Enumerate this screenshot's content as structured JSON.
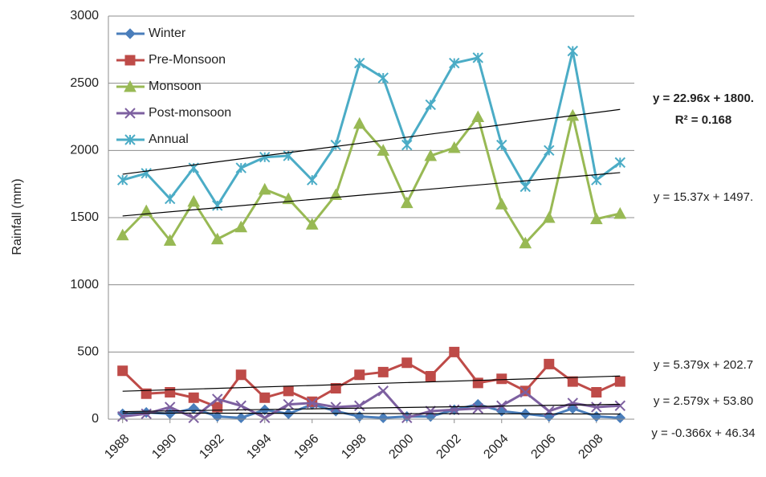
{
  "chart_data": {
    "type": "line",
    "y_label": "Rainfall (mm)",
    "x": [
      1988,
      1989,
      1990,
      1991,
      1992,
      1993,
      1994,
      1995,
      1996,
      1997,
      1998,
      1999,
      2000,
      2001,
      2002,
      2003,
      2004,
      2005,
      2006,
      2007,
      2008,
      2009
    ],
    "xlim": [
      1987.4,
      2009.6
    ],
    "xticks": [
      1988,
      1990,
      1992,
      1994,
      1996,
      1998,
      2000,
      2002,
      2004,
      2006,
      2008
    ],
    "ylim": [
      0,
      3000
    ],
    "yticks": [
      0,
      500,
      1000,
      1500,
      2000,
      2500,
      3000
    ],
    "grid": true,
    "legend": "top-left",
    "series": [
      {
        "name": "Winter",
        "color": "#4a7ebb",
        "marker": "diamond",
        "values": [
          40,
          50,
          40,
          80,
          20,
          10,
          70,
          40,
          110,
          60,
          20,
          10,
          20,
          20,
          70,
          110,
          60,
          40,
          20,
          80,
          20,
          10
        ]
      },
      {
        "name": "Pre-Monsoon",
        "color": "#be4b48",
        "marker": "square",
        "values": [
          360,
          190,
          200,
          160,
          90,
          330,
          160,
          210,
          130,
          230,
          330,
          350,
          420,
          320,
          500,
          270,
          300,
          210,
          410,
          280,
          200,
          280
        ]
      },
      {
        "name": "Monsoon",
        "color": "#98b954",
        "marker": "triangle",
        "values": [
          1370,
          1550,
          1330,
          1620,
          1340,
          1430,
          1710,
          1640,
          1450,
          1670,
          2200,
          2000,
          1610,
          1960,
          2020,
          2250,
          1600,
          1310,
          1500,
          2260,
          1490,
          1530
        ]
      },
      {
        "name": "Post-monsoon",
        "color": "#7d60a0",
        "marker": "x",
        "values": [
          20,
          40,
          90,
          10,
          150,
          100,
          10,
          110,
          120,
          90,
          100,
          210,
          10,
          60,
          70,
          80,
          100,
          200,
          60,
          120,
          90,
          100
        ]
      },
      {
        "name": "Annual",
        "color": "#4bacc6",
        "marker": "star",
        "values": [
          1780,
          1830,
          1640,
          1870,
          1590,
          1870,
          1950,
          1960,
          1780,
          2040,
          2650,
          2540,
          2040,
          2340,
          2650,
          2690,
          2040,
          1730,
          2000,
          2740,
          1780,
          1910
        ]
      }
    ],
    "trendlines": [
      {
        "slope": 22.96,
        "intercept": 1800,
        "equation": "y = 22.96x + 1800.",
        "r_squared": "R² = 0.168",
        "bold": true
      },
      {
        "slope": 15.37,
        "intercept": 1497,
        "equation": "y = 15.37x + 1497."
      },
      {
        "slope": 5.379,
        "intercept": 202.7,
        "equation": "y = 5.379x + 202.7"
      },
      {
        "slope": 2.579,
        "intercept": 53.8,
        "equation": "y = 2.579x + 53.80"
      },
      {
        "slope": -0.366,
        "intercept": 46.34,
        "equation": "y = -0.366x + 46.34"
      }
    ]
  }
}
